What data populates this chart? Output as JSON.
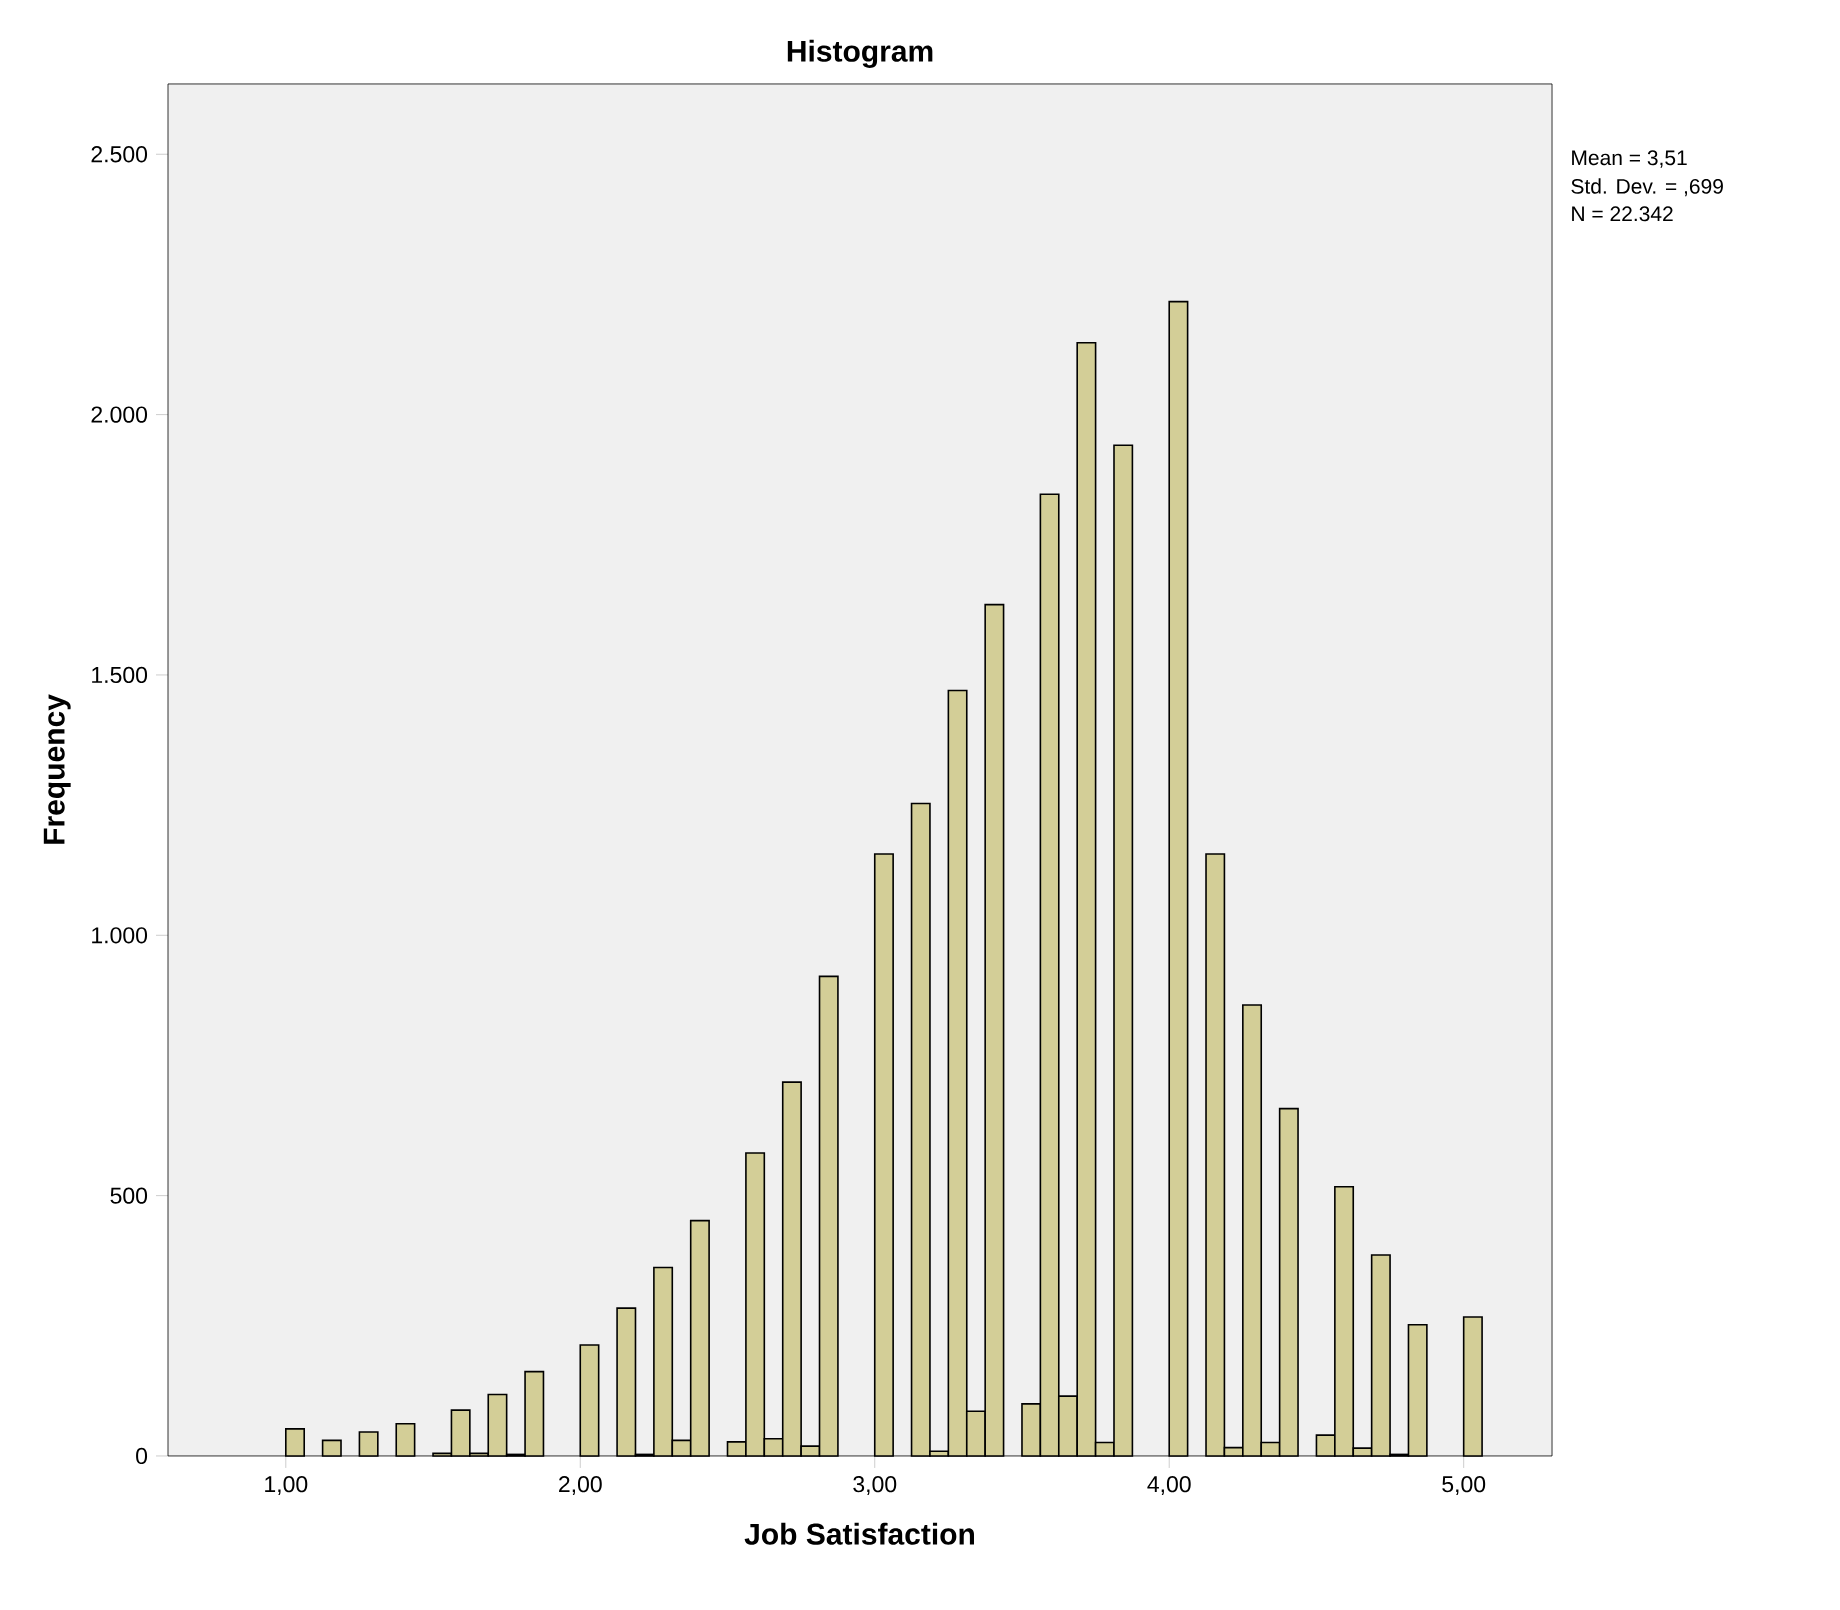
{
  "chart_data": {
    "type": "histogram",
    "title": "Histogram",
    "xlabel": "Job Satisfaction",
    "ylabel": "Frequency",
    "annotations": [
      "Mean = 3,51",
      "Std. Dev. = ,699",
      "N = 22.342"
    ],
    "bins": [
      1,
      1.0625,
      1.125,
      1.1875,
      1.25,
      1.3125,
      1.375,
      1.4375,
      1.5,
      1.5625,
      1.625,
      1.6875,
      1.75,
      1.8125,
      1.875,
      1.9375,
      2,
      2.0625,
      2.125,
      2.1875,
      2.25,
      2.3125,
      2.375,
      2.4375,
      2.5,
      2.5625,
      2.625,
      2.6875,
      2.75,
      2.8125,
      2.875,
      2.9375,
      3,
      3.0625,
      3.125,
      3.1875,
      3.25,
      3.3125,
      3.375,
      3.4375,
      3.5,
      3.5625,
      3.625,
      3.6875,
      3.75,
      3.8125,
      3.875,
      3.9375,
      4,
      4.0625,
      4.125,
      4.1875,
      4.25,
      4.3125,
      4.375,
      4.4375,
      4.5,
      4.5625,
      4.625,
      4.6875,
      4.75,
      4.8125,
      4.875,
      4.9375,
      5,
      5.0625
    ],
    "values": [
      52,
      0,
      30,
      0,
      46,
      0,
      62,
      0,
      5,
      88,
      5,
      118,
      3,
      162,
      0,
      0,
      213,
      0,
      284,
      3,
      362,
      30,
      452,
      0,
      27,
      582,
      33,
      718,
      19,
      921,
      0,
      0,
      1156,
      0,
      1253,
      9,
      1470,
      86,
      1635,
      0,
      100,
      1847,
      115,
      2138,
      26,
      1941,
      0,
      0,
      2217,
      0,
      1156,
      16,
      866,
      26,
      667,
      0,
      40,
      517,
      15,
      386,
      3,
      252,
      0,
      0,
      267
    ],
    "color": "#d3ce97",
    "xlim": [
      0.6,
      5.3
    ],
    "xticks": [
      {
        "value": 1,
        "label": "1,00"
      },
      {
        "value": 2,
        "label": "2,00"
      },
      {
        "value": 3,
        "label": "3,00"
      },
      {
        "value": 4,
        "label": "4,00"
      },
      {
        "value": 5,
        "label": "5,00"
      }
    ],
    "ylim": [
      0,
      2635
    ],
    "yticks": [
      0,
      500,
      {
        "value": 1000,
        "label": "1.000"
      },
      {
        "value": 1500,
        "label": "1.500"
      },
      {
        "value": 2000,
        "label": "2.000"
      },
      {
        "value": 2500,
        "label": "2.500"
      }
    ],
    "grid": false
  }
}
